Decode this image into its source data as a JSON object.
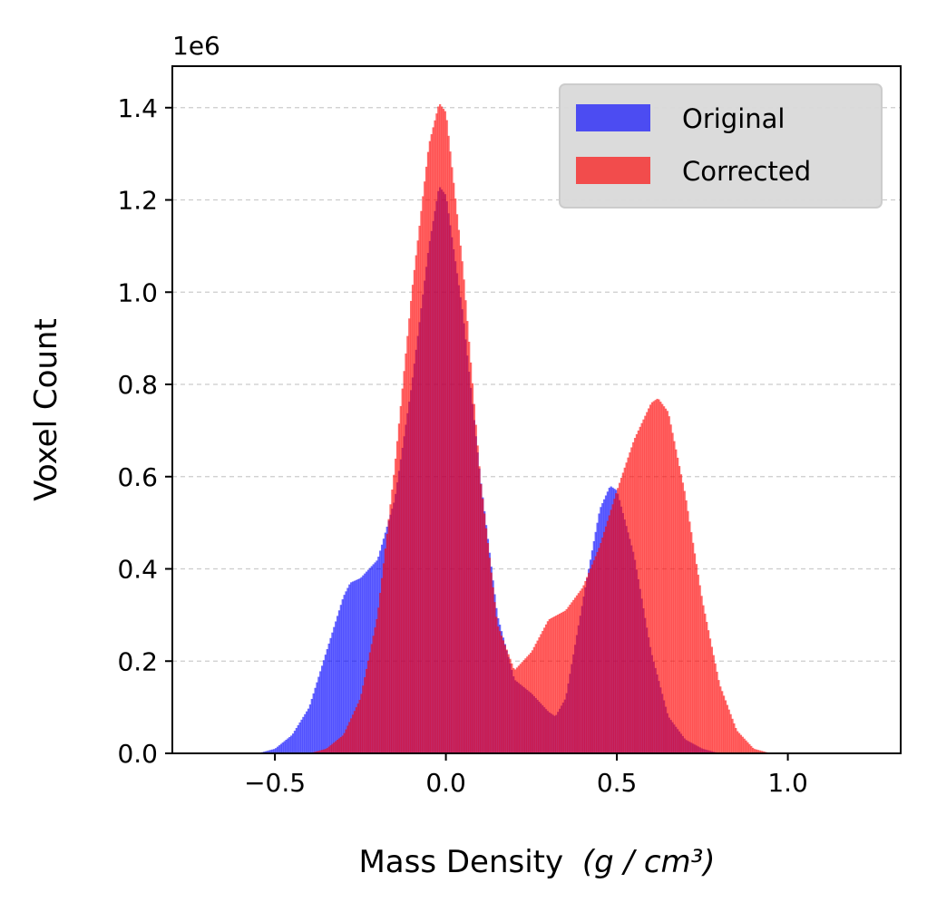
{
  "chart_data": {
    "type": "bar",
    "title": "",
    "xlabel": "Mass Density",
    "xlabel_unit": "(g / cm³)",
    "ylabel": "Voxel Count",
    "y_offset_label": "1e6",
    "xlim": [
      -0.8,
      1.33
    ],
    "ylim": [
      0,
      1.49
    ],
    "y_scale_multiplier": 1000000,
    "xticks": [
      -0.5,
      0.0,
      0.5,
      1.0
    ],
    "xtick_labels": [
      "−0.5",
      "0.0",
      "0.5",
      "1.0"
    ],
    "yticks": [
      0.0,
      0.2,
      0.4,
      0.6,
      0.8,
      1.0,
      1.2,
      1.4
    ],
    "ytick_labels": [
      "0.0",
      "0.2",
      "0.4",
      "0.6",
      "0.8",
      "1.0",
      "1.2",
      "1.4"
    ],
    "grid": {
      "axis": "y",
      "style": "dashed",
      "color": "#cccccc"
    },
    "legend": {
      "position": "top-right",
      "background": "#d9d9d9"
    },
    "bin_width": 0.005,
    "series": [
      {
        "name": "Original",
        "color": "#0000ff",
        "opacity": 0.6,
        "x": [
          -0.55,
          -0.5,
          -0.45,
          -0.4,
          -0.35,
          -0.3,
          -0.28,
          -0.25,
          -0.2,
          -0.15,
          -0.1,
          -0.05,
          -0.02,
          0.0,
          0.05,
          0.1,
          0.15,
          0.2,
          0.25,
          0.3,
          0.32,
          0.35,
          0.4,
          0.45,
          0.48,
          0.5,
          0.55,
          0.6,
          0.65,
          0.7,
          0.75,
          0.8,
          0.85
        ],
        "values": [
          0.0,
          0.01,
          0.04,
          0.1,
          0.22,
          0.34,
          0.37,
          0.38,
          0.42,
          0.55,
          0.8,
          1.1,
          1.23,
          1.21,
          0.95,
          0.6,
          0.3,
          0.16,
          0.13,
          0.09,
          0.08,
          0.12,
          0.33,
          0.53,
          0.58,
          0.57,
          0.43,
          0.22,
          0.08,
          0.03,
          0.01,
          0.0,
          0.0
        ]
      },
      {
        "name": "Corrected",
        "color": "#ff0000",
        "opacity": 0.6,
        "x": [
          -0.4,
          -0.35,
          -0.3,
          -0.25,
          -0.2,
          -0.15,
          -0.1,
          -0.05,
          -0.02,
          0.0,
          0.05,
          0.1,
          0.15,
          0.2,
          0.25,
          0.3,
          0.35,
          0.4,
          0.45,
          0.5,
          0.55,
          0.6,
          0.62,
          0.65,
          0.7,
          0.75,
          0.8,
          0.85,
          0.9,
          0.95
        ],
        "values": [
          0.0,
          0.01,
          0.04,
          0.12,
          0.3,
          0.62,
          1.0,
          1.32,
          1.41,
          1.39,
          1.05,
          0.6,
          0.28,
          0.18,
          0.22,
          0.29,
          0.31,
          0.36,
          0.45,
          0.57,
          0.68,
          0.76,
          0.77,
          0.74,
          0.56,
          0.33,
          0.15,
          0.05,
          0.01,
          0.0
        ]
      }
    ]
  }
}
